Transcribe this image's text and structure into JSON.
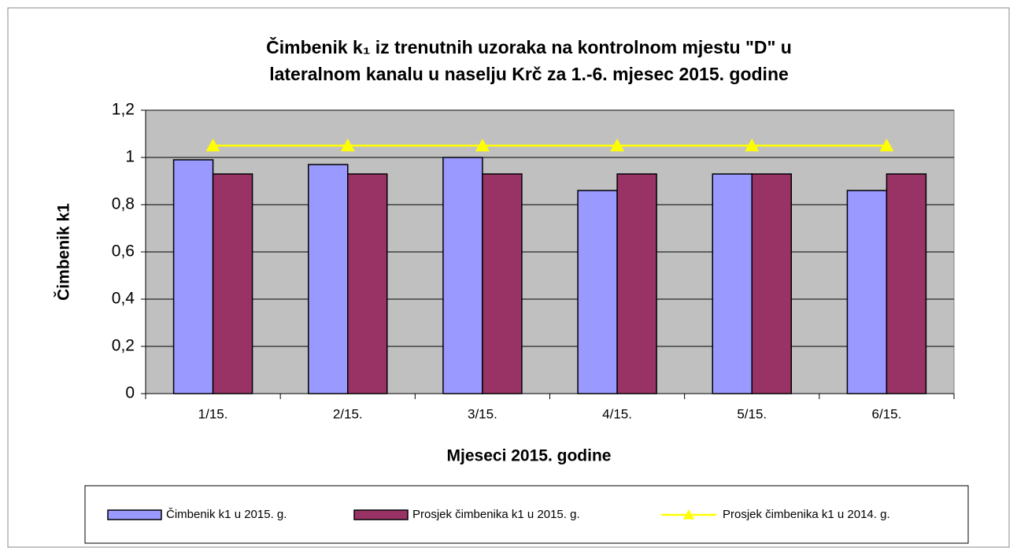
{
  "chart_data": {
    "type": "bar",
    "title": [
      "Čimbenik k₁ iz trenutnih uzoraka na kontrolnom mjestu \"D\" u",
      "lateralnom kanalu u naselju Krč za 1.-6. mjesec 2015. godine"
    ],
    "x_label": "Mjeseci 2015. godine",
    "y_label": "Čimbenik k1",
    "categories": [
      "1/15.",
      "2/15.",
      "3/15.",
      "4/15.",
      "5/15.",
      "6/15."
    ],
    "series": [
      {
        "name": "Čimbenik k1 u 2015. g.",
        "type": "bar",
        "color": "#9999ff",
        "values": [
          0.99,
          0.97,
          1.0,
          0.86,
          0.93,
          0.86
        ]
      },
      {
        "name": "Prosjek čimbenika k1 u 2015. g.",
        "type": "bar",
        "color": "#993366",
        "values": [
          0.93,
          0.93,
          0.93,
          0.93,
          0.93,
          0.93
        ]
      },
      {
        "name": "Prosjek čimbenika k1 u 2014. g.",
        "type": "line",
        "color": "#ffff00",
        "values": [
          1.05,
          1.05,
          1.05,
          1.05,
          1.05,
          1.05
        ]
      }
    ],
    "ylim": [
      0,
      1.2
    ],
    "yticks": [
      0,
      {
        "value": 0.2,
        "label": "0,2"
      },
      {
        "value": 0.4,
        "label": "0,4"
      },
      {
        "value": 0.6,
        "label": "0,6"
      },
      {
        "value": 0.8,
        "label": "0,8"
      },
      1,
      {
        "value": 1.2,
        "label": "1,2"
      }
    ],
    "grid": true,
    "legend": "bottom"
  }
}
